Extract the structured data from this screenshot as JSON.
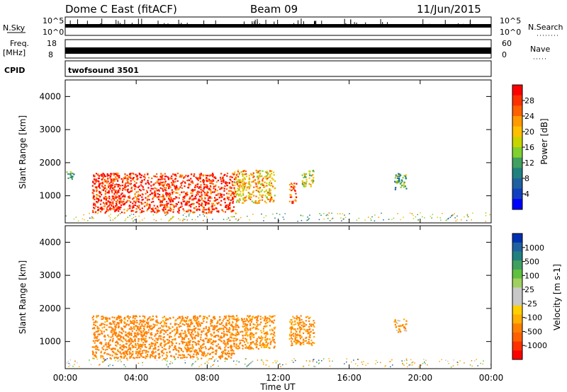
{
  "header": {
    "station": "Dome C East (fitACF)",
    "beam": "Beam 09",
    "date": "11/Jun/2015"
  },
  "strips": {
    "nsky_label": "N.Sky",
    "nsearch_label": "N.Search",
    "nsky_ticks": [
      "10^5",
      "10^0"
    ],
    "nsearch_ticks": [
      "10^5",
      "10^0"
    ],
    "freq_label": "Freq.",
    "freq_unit": "[MHz]",
    "freq_ticks": [
      "18",
      "8"
    ],
    "nave_label": "Nave",
    "nave_ticks": [
      "60",
      "0"
    ],
    "cpid_label": "CPID",
    "cpid_value": "twofsound 3501"
  },
  "power_panel": {
    "ylabel": "Slant Range [km]",
    "yticks": [
      "4000",
      "3000",
      "2000",
      "1000"
    ],
    "colorbar_label": "Power [dB]",
    "colorbar_ticks": [
      "28",
      "24",
      "20",
      "16",
      "12",
      "8",
      "4"
    ],
    "colorbar_colors": [
      "#ff0000",
      "#ff3000",
      "#ff6000",
      "#ff9a00",
      "#ffc000",
      "#c8d400",
      "#80d030",
      "#40a060",
      "#208080",
      "#2060a0",
      "#1040c0",
      "#0000ff"
    ]
  },
  "velocity_panel": {
    "ylabel": "Slant Range [km]",
    "yticks": [
      "4000",
      "3000",
      "2000",
      "1000"
    ],
    "colorbar_label": "Velocity [m s-1]",
    "colorbar_ticks": [
      "1000",
      "500",
      "100",
      "25",
      "-25",
      "-100",
      "-500",
      "-1000"
    ],
    "colorbar_colors": [
      "#0030b0",
      "#2060a0",
      "#208080",
      "#40a060",
      "#60c040",
      "#a0d060",
      "#c8c8c8",
      "#c8c8c8",
      "#ffd000",
      "#ffb000",
      "#ff8000",
      "#ff6000",
      "#ff3000",
      "#ff0000"
    ]
  },
  "xaxis": {
    "label": "Time UT",
    "ticks": [
      "00:00",
      "04:00",
      "08:00",
      "12:00",
      "16:00",
      "20:00",
      "00:00"
    ]
  },
  "chart_data": {
    "type": "heatmap",
    "title": "Dome C East (fitACF)",
    "xlabel": "Time UT",
    "ylabel": "Slant Range [km]",
    "xlim_hours": [
      0,
      24
    ],
    "ylim_km": [
      180,
      4500
    ],
    "power_regions": [
      {
        "t0": 1.5,
        "t1": 9.5,
        "r0": 500,
        "r1": 1700,
        "level": "strong",
        "value_db": 28
      },
      {
        "t0": 9.5,
        "t1": 11.8,
        "r0": 800,
        "r1": 1800,
        "level": "mid",
        "value_db": 20
      },
      {
        "t0": 12.6,
        "t1": 13.0,
        "r0": 800,
        "r1": 1400,
        "level": "strong",
        "value_db": 26
      },
      {
        "t0": 13.3,
        "t1": 14.0,
        "r0": 1300,
        "r1": 1800,
        "level": "mid",
        "value_db": 16
      },
      {
        "t0": 18.5,
        "t1": 19.2,
        "r0": 1200,
        "r1": 1700,
        "level": "weak",
        "value_db": 12
      },
      {
        "t0": 0.0,
        "t1": 0.5,
        "r0": 1500,
        "r1": 1750,
        "level": "weak",
        "value_db": 12
      }
    ],
    "velocity_regions": [
      {
        "t0": 1.5,
        "t1": 9.5,
        "r0": 500,
        "r1": 1800,
        "value_ms": -200
      },
      {
        "t0": 9.5,
        "t1": 11.8,
        "r0": 800,
        "r1": 1800,
        "value_ms": -150
      },
      {
        "t0": 12.6,
        "t1": 14.0,
        "r0": 900,
        "r1": 1800,
        "value_ms": -150
      },
      {
        "t0": 18.5,
        "t1": 19.2,
        "r0": 1300,
        "r1": 1700,
        "value_ms": -100
      }
    ]
  }
}
